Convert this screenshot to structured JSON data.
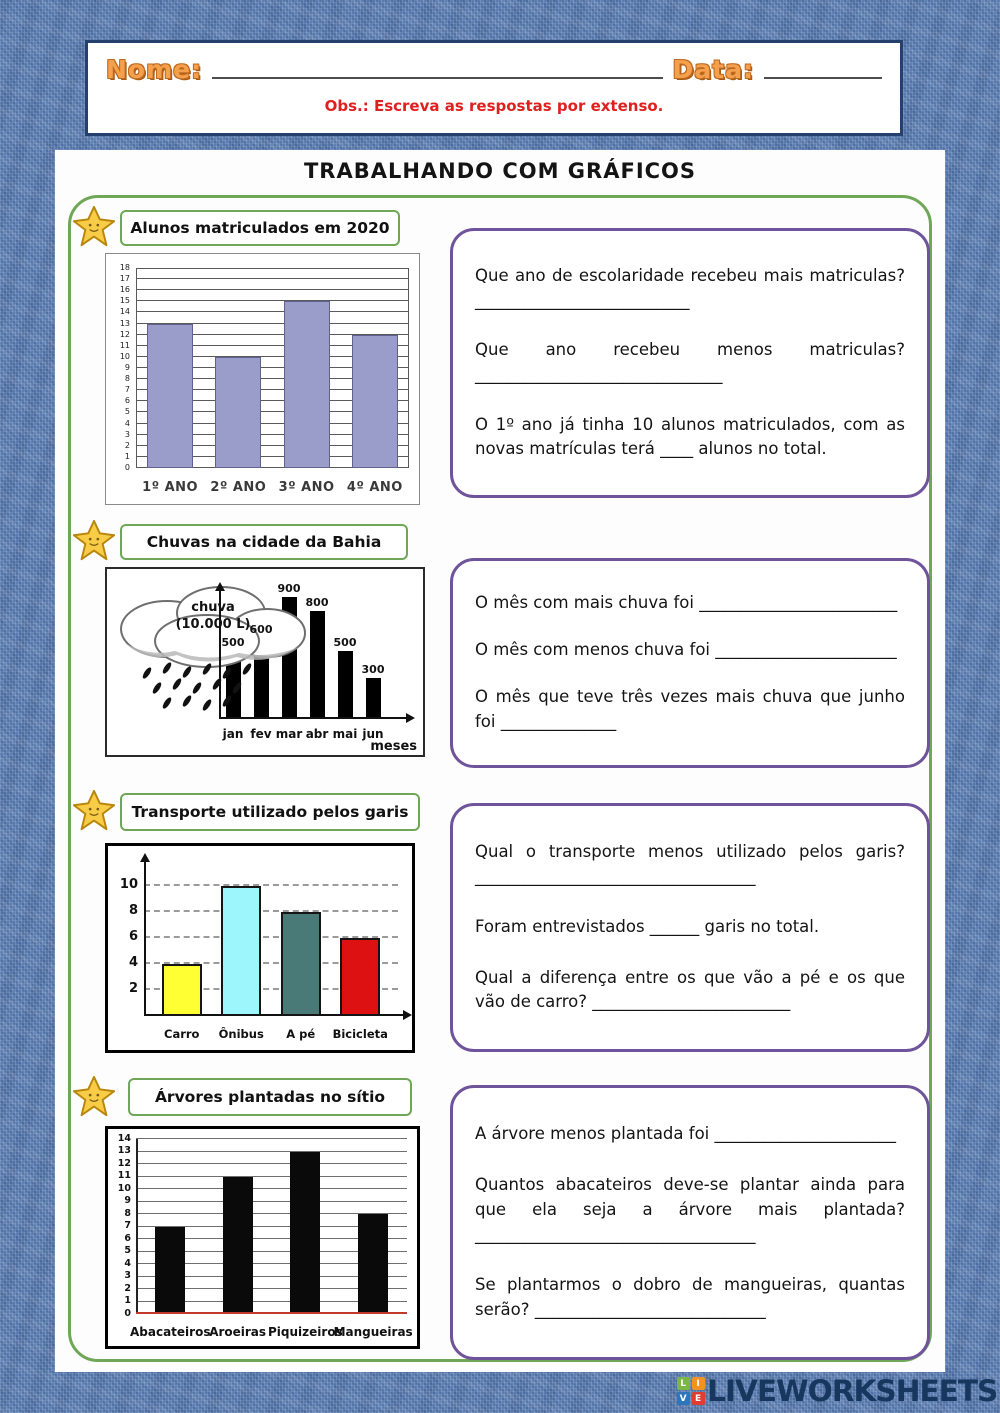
{
  "header": {
    "nome_label": "Nome:",
    "data_label": "Data:",
    "obs": "Obs.: Escreva as respostas por extenso."
  },
  "page_title": "TRABALHANDO COM GRÁFICOS",
  "sections": [
    {
      "title": "Alunos matriculados em 2020",
      "questions": [
        "Que ano de escolaridade recebeu mais matriculas? __________________________",
        "Que ano recebeu menos matriculas? ______________________________",
        "O 1º ano já tinha 10 alunos matriculados, com as novas matrículas terá ____ alunos no total."
      ]
    },
    {
      "title": "Chuvas na cidade da Bahia",
      "questions": [
        "O mês com mais chuva foi ________________________",
        "O mês com menos chuva foi ______________________",
        "O mês que teve três vezes mais chuva que junho foi ______________"
      ]
    },
    {
      "title": "Transporte utilizado pelos garis",
      "questions": [
        "Qual o transporte menos utilizado pelos garis? __________________________________",
        "Foram entrevistados ______ garis no total.",
        "Qual a diferença entre os que vão a pé e os que vão de carro? ________________________"
      ]
    },
    {
      "title": "Árvores plantadas no sítio",
      "questions": [
        "A árvore menos plantada foi ______________________",
        "Quantos abacateiros deve-se plantar ainda para que ela seja a árvore mais plantada? __________________________________",
        "Se plantarmos o dobro de mangueiras, quantas serão? ____________________________"
      ]
    }
  ],
  "chart_data": [
    {
      "type": "bar",
      "title": "Alunos matriculados em 2020",
      "categories": [
        "1º ANO",
        "2º ANO",
        "3º ANO",
        "4º ANO"
      ],
      "values": [
        13,
        10,
        15,
        12
      ],
      "ylim": [
        0,
        18
      ],
      "ytick_step": 1,
      "bar_color": "#9a9cca",
      "grid": "solid",
      "legend": "none"
    },
    {
      "type": "bar",
      "title": "Chuvas na cidade da Bahia",
      "categories": [
        "jan",
        "fev",
        "mar",
        "abr",
        "mai",
        "jun"
      ],
      "values": [
        500,
        600,
        900,
        800,
        500,
        300
      ],
      "value_labels": [
        500,
        600,
        900,
        800,
        500,
        300
      ],
      "y_label_line1": "chuva",
      "y_label_line2": "(10.000 L)",
      "xlabel": "meses",
      "ylim": [
        0,
        900
      ],
      "bar_color": "#000000",
      "grid": "off"
    },
    {
      "type": "bar",
      "title": "Transporte utilizado pelos garis",
      "categories": [
        "Carro",
        "Ônibus",
        "A pé",
        "Bicicleta"
      ],
      "values": [
        4,
        10,
        8,
        6
      ],
      "bar_colors": [
        "#ffff33",
        "#9cf6fb",
        "#4a7a78",
        "#dd1111"
      ],
      "ylim": [
        0,
        11
      ],
      "yticks": [
        2,
        4,
        6,
        8,
        10
      ],
      "grid": "dashed"
    },
    {
      "type": "bar",
      "title": "Árvores plantadas no sítio",
      "categories": [
        "Abacateiros",
        "Aroeiras",
        "Piquizeiros",
        "Mangueiras"
      ],
      "values": [
        7,
        11,
        13,
        8
      ],
      "ylim": [
        0,
        14
      ],
      "ytick_step": 1,
      "bar_color": "#0a0a0a",
      "baseline_color": "#c0392b",
      "grid": "solid"
    }
  ],
  "footer": {
    "brand": "LIVEWORKSHEETS",
    "logo": [
      {
        "letter": "L",
        "color": "#7ab648"
      },
      {
        "letter": "I",
        "color": "#f29220"
      },
      {
        "letter": "V",
        "color": "#2e75bb"
      },
      {
        "letter": "E",
        "color": "#e03c31"
      }
    ]
  },
  "colors": {
    "denim_blue": "#5c7eb3",
    "accent_green": "#6fa757",
    "accent_purple": "#70549b",
    "header_orange": "#f5a04c",
    "obs_red": "#e01f1f",
    "brand_navy": "#17375f"
  }
}
